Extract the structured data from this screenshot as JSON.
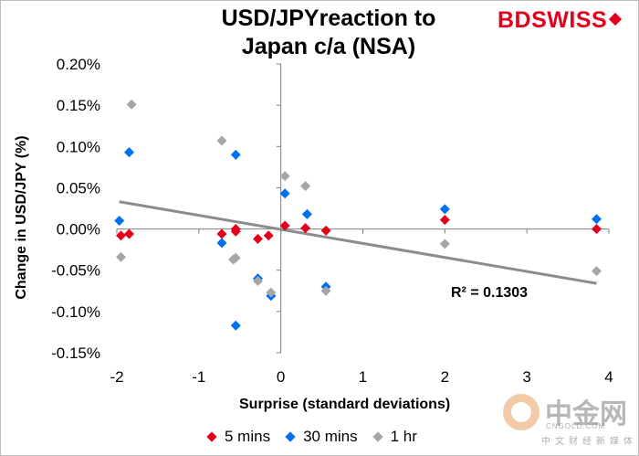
{
  "brand": {
    "bd": "BD",
    "swiss": "SWISS"
  },
  "watermark": {
    "text": "中金网",
    "sub": "CNGOLD.COM",
    "sub2": "中文财经新媒体"
  },
  "chart_data": {
    "type": "scatter",
    "title_lines": [
      "USD/JPYreaction to",
      "Japan c/a (NSA)"
    ],
    "xlabel": "Surprise (standard deviations)",
    "ylabel": "Change in USD/JPY  (%)",
    "xlim": [
      -2,
      4
    ],
    "ylim": [
      -0.15,
      0.2
    ],
    "x_ticks": [
      "-2",
      "-1",
      "0",
      "1",
      "2",
      "3",
      "4"
    ],
    "y_ticks": [
      "0.20%",
      "0.15%",
      "0.10%",
      "0.05%",
      "0.00%",
      "-0.05%",
      "-0.10%",
      "-0.15%"
    ],
    "grid": false,
    "legend_position": "bottom",
    "annotation": "R² = 0.1303",
    "trendline": {
      "x": [
        -1.97,
        3.85
      ],
      "y": [
        0.033,
        -0.066
      ],
      "color": "#8c8c8c"
    },
    "series": [
      {
        "name": "5 mins",
        "color": "#e3001b",
        "points": [
          [
            -1.95,
            -0.008
          ],
          [
            -1.85,
            -0.006
          ],
          [
            -0.72,
            -0.006
          ],
          [
            -0.55,
            0.0
          ],
          [
            -0.55,
            -0.003
          ],
          [
            -0.28,
            -0.012
          ],
          [
            -0.15,
            -0.008
          ],
          [
            0.05,
            0.004
          ],
          [
            0.3,
            0.001
          ],
          [
            0.55,
            -0.002
          ],
          [
            2.0,
            0.011
          ],
          [
            3.85,
            0.0
          ]
        ]
      },
      {
        "name": "30 mins",
        "color": "#0070f0",
        "points": [
          [
            -1.97,
            0.01
          ],
          [
            -1.85,
            0.093
          ],
          [
            -0.72,
            -0.017
          ],
          [
            -0.55,
            0.09
          ],
          [
            -0.55,
            -0.117
          ],
          [
            -0.28,
            -0.06
          ],
          [
            -0.12,
            -0.081
          ],
          [
            0.05,
            0.043
          ],
          [
            0.32,
            0.018
          ],
          [
            0.55,
            -0.07
          ],
          [
            2.0,
            0.024
          ],
          [
            3.85,
            0.012
          ]
        ]
      },
      {
        "name": "1 hr",
        "color": "#a6a6a6",
        "points": [
          [
            -1.95,
            -0.034
          ],
          [
            -1.82,
            0.151
          ],
          [
            -0.72,
            0.107
          ],
          [
            -0.55,
            -0.035
          ],
          [
            -0.58,
            -0.037
          ],
          [
            -0.28,
            -0.063
          ],
          [
            -0.12,
            -0.077
          ],
          [
            0.05,
            0.064
          ],
          [
            0.3,
            0.052
          ],
          [
            0.55,
            -0.075
          ],
          [
            2.0,
            -0.018
          ],
          [
            3.85,
            -0.051
          ]
        ]
      }
    ]
  }
}
